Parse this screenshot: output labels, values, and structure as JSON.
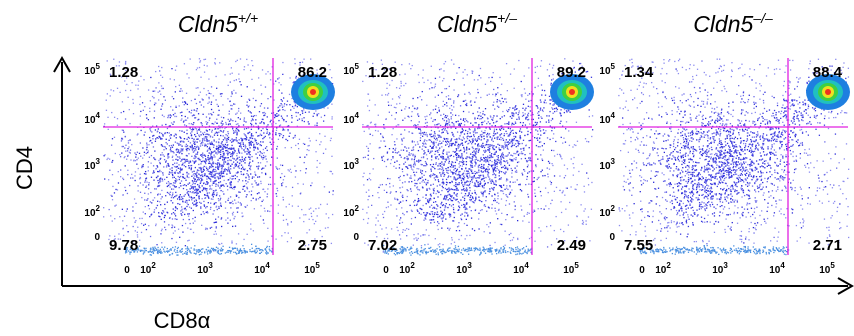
{
  "figure": {
    "y_axis_label": "CD4",
    "x_axis_label": "CD8α",
    "y_ticks": [
      {
        "text": "10",
        "sup": "5"
      },
      {
        "text": "10",
        "sup": "4"
      },
      {
        "text": "10",
        "sup": "3"
      },
      {
        "text": "10",
        "sup": "2"
      },
      {
        "text": "0"
      }
    ],
    "x_ticks": [
      {
        "text": "0"
      },
      {
        "text": "10",
        "sup": "2"
      },
      {
        "text": "10",
        "sup": "3"
      },
      {
        "text": "10",
        "sup": "4"
      },
      {
        "text": "10",
        "sup": "5"
      }
    ],
    "panels": [
      {
        "title": "Cldn5",
        "genotype": "+/+",
        "top_left": "1.28",
        "top_right": "86.2",
        "bottom_left": "9.78",
        "bottom_right": "2.75"
      },
      {
        "title": "Cldn5",
        "genotype": "+/–",
        "top_left": "1.28",
        "top_right": "89.2",
        "bottom_left": "7.02",
        "bottom_right": "2.49"
      },
      {
        "title": "Cldn5",
        "genotype": "–/–",
        "top_left": "1.34",
        "top_right": "88.4",
        "bottom_left": "7.55",
        "bottom_right": "2.71"
      }
    ]
  }
}
